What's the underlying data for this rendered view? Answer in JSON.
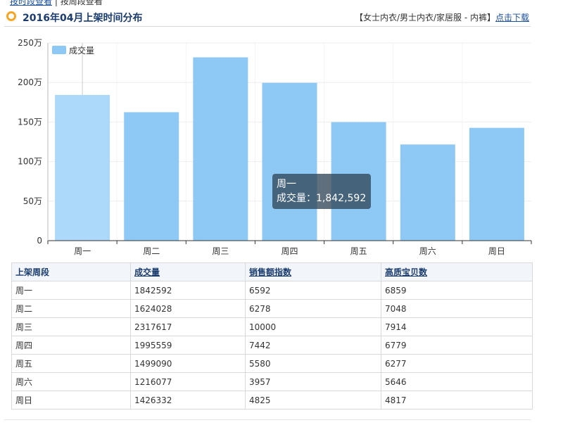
{
  "nav": {
    "link": "按时段查看",
    "separator": " | ",
    "current": "按周段查看"
  },
  "title": "2016年04月上架时间分布",
  "category": {
    "text": "【女士内衣/男士内衣/家居服 - 内裤】",
    "download": "点击下载"
  },
  "colors": {
    "bar": "#8ec9f6",
    "bar_highlight": "#acd8f9",
    "title": "#1a3c6e",
    "bullet": "#f5a623"
  },
  "chart_data": {
    "type": "bar",
    "categories": [
      "周一",
      "周二",
      "周三",
      "周四",
      "周五",
      "周六",
      "周日"
    ],
    "series": [
      {
        "name": "成交量",
        "values": [
          1842592,
          1624028,
          2317617,
          1995559,
          1499090,
          1216077,
          1426332
        ]
      }
    ],
    "ylim": [
      0,
      2500000
    ],
    "yticks": [
      0,
      500000,
      1000000,
      1500000,
      2000000,
      2500000
    ],
    "ytick_labels": [
      "0",
      "50万",
      "100万",
      "150万",
      "200万",
      "250万"
    ],
    "legend": "top-left",
    "grid": true,
    "highlight_index": 0
  },
  "tooltip": {
    "line1": "周一",
    "line2": "成交量：1,842,592"
  },
  "table": {
    "headers": [
      "上架周段",
      "成交量",
      "销售额指数",
      "高质宝贝数"
    ],
    "rows": [
      [
        "周一",
        "1842592",
        "6592",
        "6859"
      ],
      [
        "周二",
        "1624028",
        "6278",
        "7048"
      ],
      [
        "周三",
        "2317617",
        "10000",
        "7914"
      ],
      [
        "周四",
        "1995559",
        "7442",
        "6779"
      ],
      [
        "周五",
        "1499090",
        "5580",
        "6277"
      ],
      [
        "周六",
        "1216077",
        "3957",
        "5646"
      ],
      [
        "周日",
        "1426332",
        "4825",
        "4817"
      ]
    ]
  }
}
